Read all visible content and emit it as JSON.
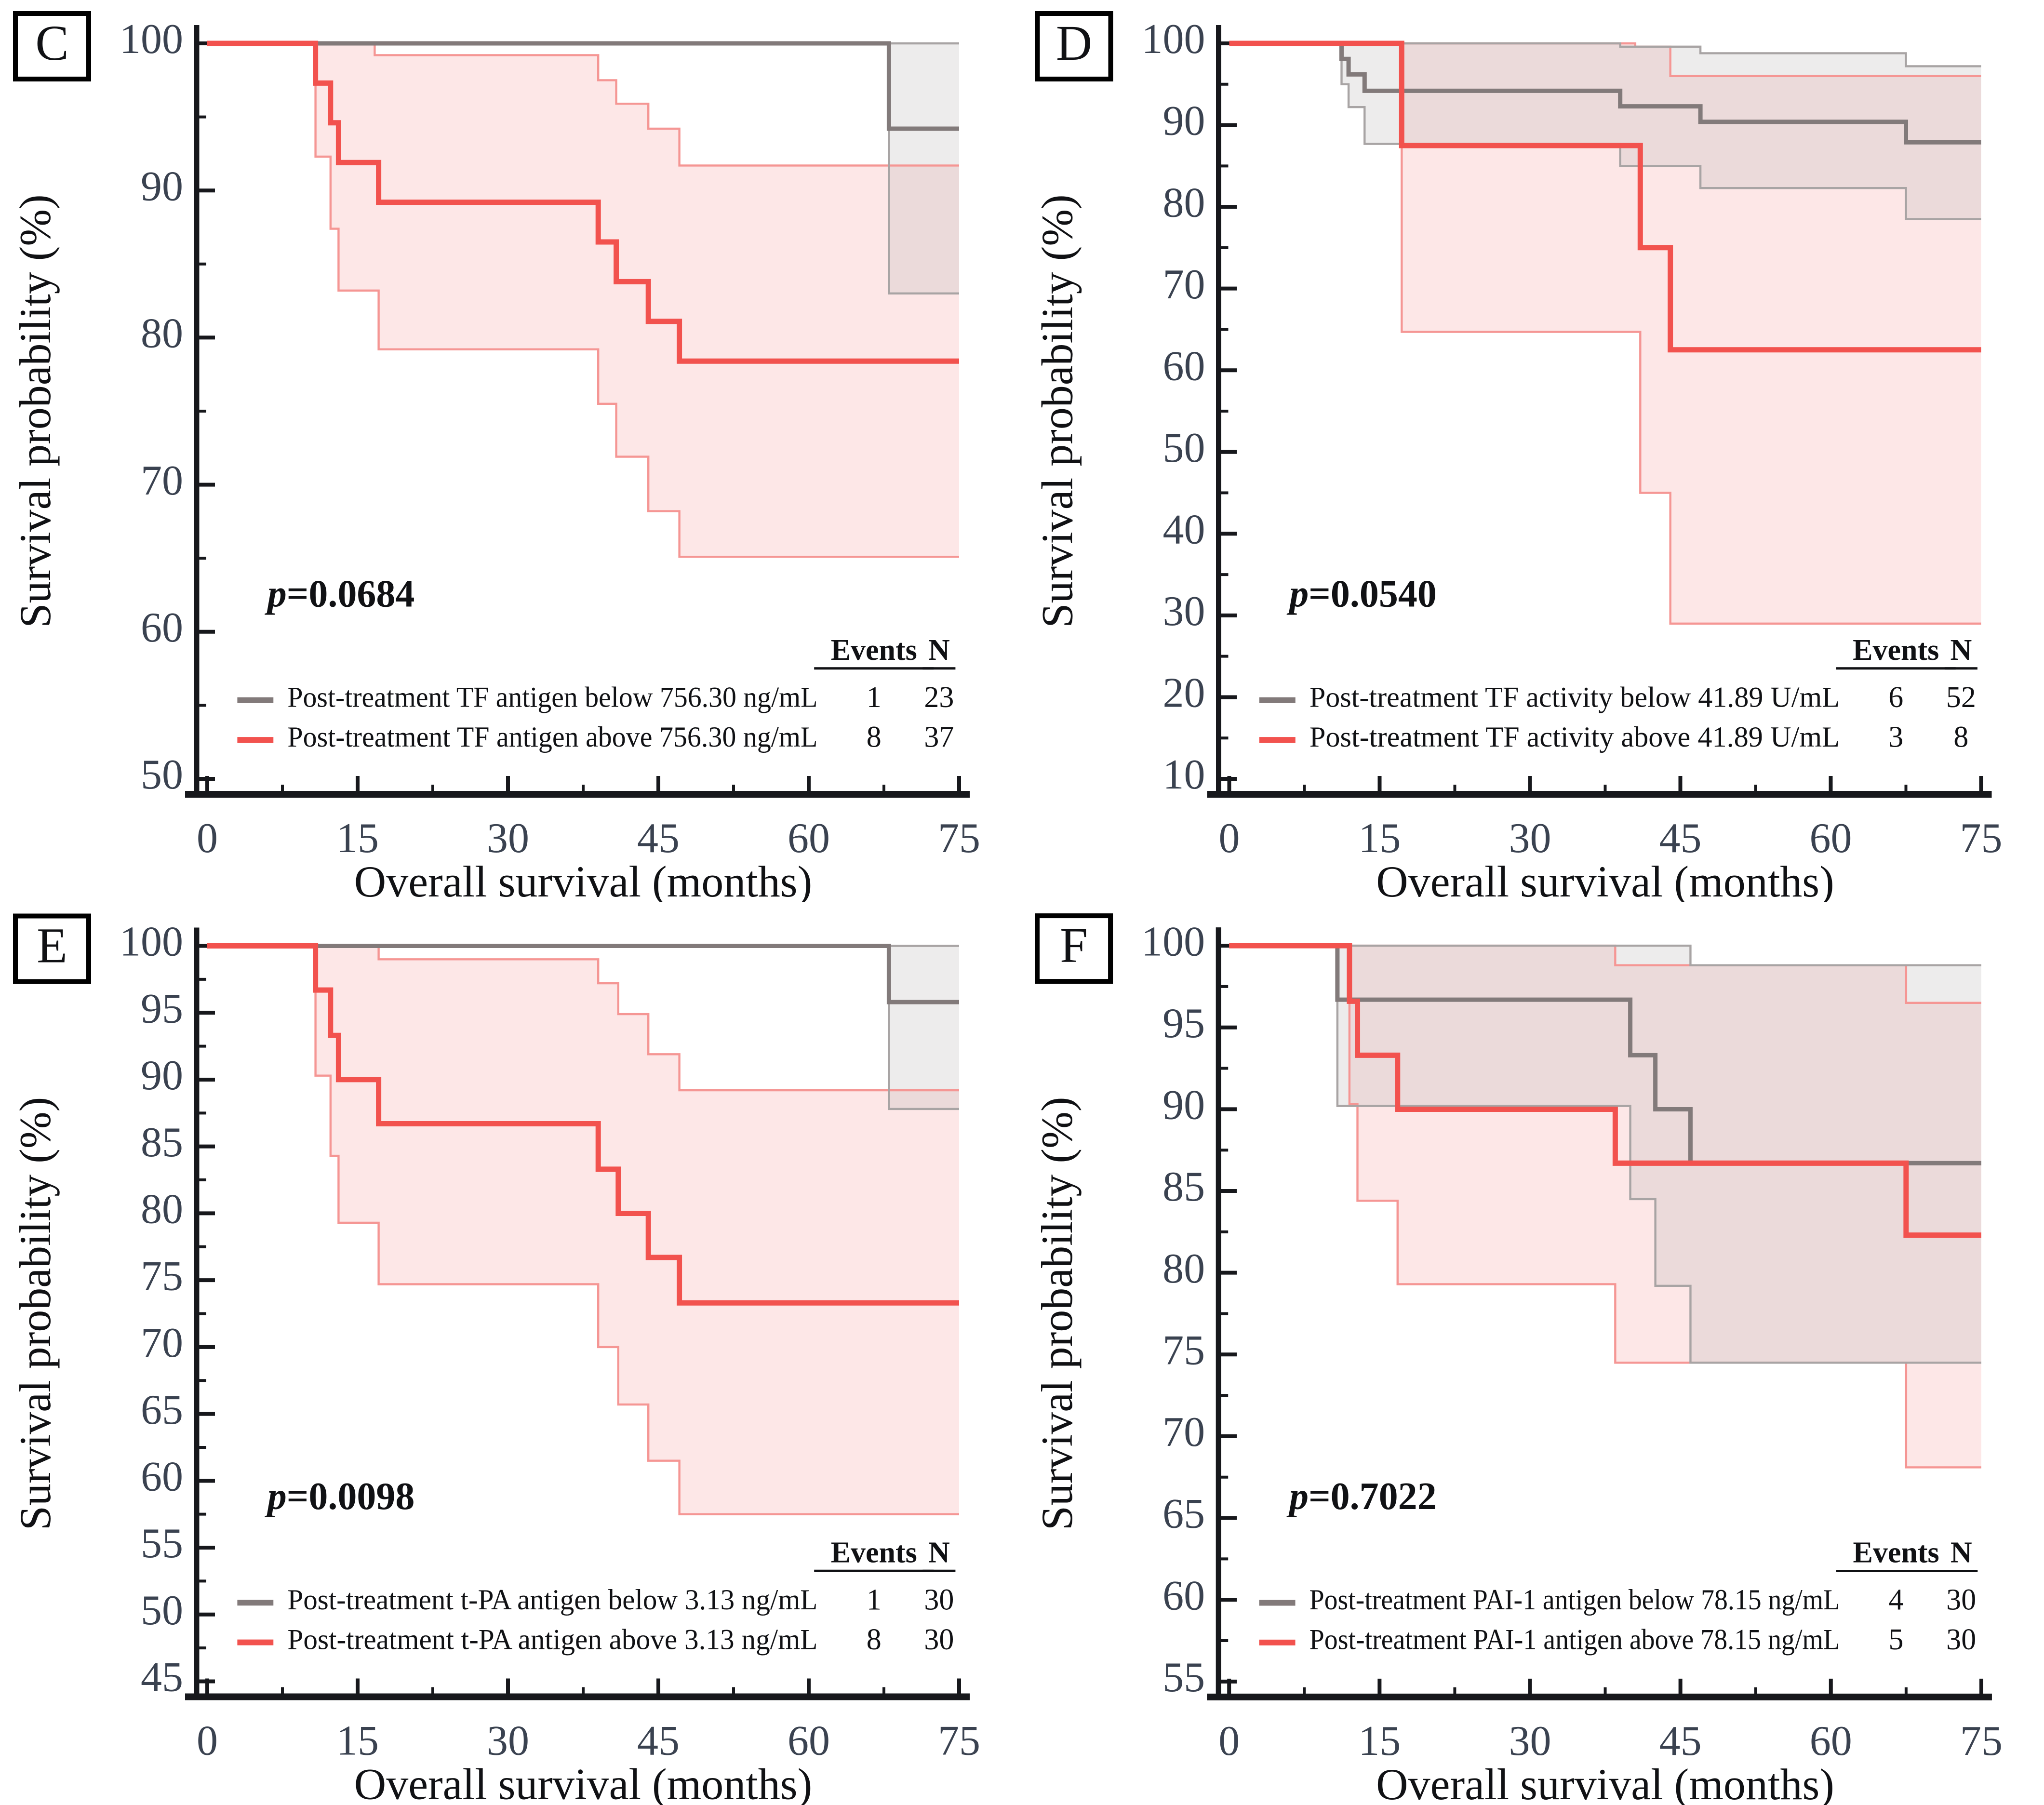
{
  "figure": {
    "background": "#ffffff",
    "colors": {
      "red_line": "#f2524e",
      "red_ci_edge": "#f59694",
      "red_ci_fill": "#f7b0ae",
      "red_ci_fill_opacity": 0.3,
      "gray_line": "#827a7a",
      "gray_ci_edge": "#a8a4a4",
      "gray_ci_fill": "#b8b4b4",
      "gray_ci_fill_opacity": 0.26,
      "axis": "#17181c",
      "tick_label": "#3a4250",
      "text": "#101114"
    }
  },
  "chart_data": [
    {
      "type": "line",
      "panel_label": "C",
      "p_value_italic": "p",
      "p_value_rest": "=0.0684",
      "xlabel": "Overall survival (months)",
      "ylabel": "Survival probability (%)",
      "xlim": [
        0,
        75
      ],
      "x_ticks": [
        0,
        15,
        30,
        45,
        60,
        75
      ],
      "x_minor_step": 7.5,
      "ylim": [
        50,
        100
      ],
      "y_ticks": [
        50,
        60,
        70,
        80,
        90,
        100
      ],
      "y_minor_step": 5,
      "legend_headers": {
        "events": "Events",
        "n": "N"
      },
      "series": [
        {
          "name": "Post-treatment TF antigen below 756.30 ng/mL",
          "color": "gray",
          "events": 1,
          "n": 23,
          "steps": [
            [
              0,
              100
            ],
            [
              68,
              100
            ],
            [
              68,
              94.2
            ],
            [
              75,
              94.2
            ]
          ],
          "ci_upper": [
            [
              68,
              100
            ],
            [
              75,
              100
            ]
          ],
          "ci_lower": [
            [
              68,
              100
            ],
            [
              68,
              83
            ],
            [
              75,
              83
            ]
          ]
        },
        {
          "name": "Post-treatment TF antigen above 756.30 ng/mL",
          "color": "red",
          "events": 8,
          "n": 37,
          "steps": [
            [
              0,
              100
            ],
            [
              10.8,
              100
            ],
            [
              10.8,
              97.3
            ],
            [
              12.3,
              97.3
            ],
            [
              12.3,
              94.6
            ],
            [
              13.1,
              94.6
            ],
            [
              13.1,
              91.9
            ],
            [
              17.1,
              91.9
            ],
            [
              17.1,
              89.2
            ],
            [
              39,
              89.2
            ],
            [
              39,
              86.5
            ],
            [
              40.8,
              86.5
            ],
            [
              40.8,
              83.8
            ],
            [
              44,
              83.8
            ],
            [
              44,
              81.1
            ],
            [
              47.1,
              81.1
            ],
            [
              47.1,
              78.4
            ],
            [
              75,
              78.4
            ]
          ],
          "ci_upper": [
            [
              0,
              100
            ],
            [
              16.7,
              100
            ],
            [
              16.7,
              99.2
            ],
            [
              39,
              99.2
            ],
            [
              39,
              97.5
            ],
            [
              40.8,
              97.5
            ],
            [
              40.8,
              95.9
            ],
            [
              44,
              95.9
            ],
            [
              44,
              94.2
            ],
            [
              47.1,
              94.2
            ],
            [
              47.1,
              91.7
            ],
            [
              75,
              91.7
            ]
          ],
          "ci_lower": [
            [
              10.8,
              100
            ],
            [
              10.8,
              92.3
            ],
            [
              12.3,
              92.3
            ],
            [
              12.3,
              87.4
            ],
            [
              13.1,
              87.4
            ],
            [
              13.1,
              83.2
            ],
            [
              17.1,
              83.2
            ],
            [
              17.1,
              79.2
            ],
            [
              39,
              79.2
            ],
            [
              39,
              75.5
            ],
            [
              40.8,
              75.5
            ],
            [
              40.8,
              71.9
            ],
            [
              44,
              71.9
            ],
            [
              44,
              68.2
            ],
            [
              47.1,
              68.2
            ],
            [
              47.1,
              65.1
            ],
            [
              75,
              65.1
            ]
          ]
        }
      ]
    },
    {
      "type": "line",
      "panel_label": "D",
      "p_value_italic": "p",
      "p_value_rest": "=0.0540",
      "xlabel": "Overall survival (months)",
      "ylabel": "Survival probability (%)",
      "xlim": [
        0,
        75
      ],
      "x_ticks": [
        0,
        15,
        30,
        45,
        60,
        75
      ],
      "x_minor_step": 7.5,
      "ylim": [
        10,
        100
      ],
      "y_ticks": [
        10,
        20,
        30,
        40,
        50,
        60,
        70,
        80,
        90,
        100
      ],
      "y_minor_step": 5,
      "legend_headers": {
        "events": "Events",
        "n": "N"
      },
      "series": [
        {
          "name": "Post-treatment TF activity below 41.89 U/mL",
          "color": "gray",
          "events": 6,
          "n": 52,
          "steps": [
            [
              0,
              100
            ],
            [
              11.2,
              100
            ],
            [
              11.2,
              98.1
            ],
            [
              11.9,
              98.1
            ],
            [
              11.9,
              96.2
            ],
            [
              13.5,
              96.2
            ],
            [
              13.5,
              94.2
            ],
            [
              39,
              94.2
            ],
            [
              39,
              92.3
            ],
            [
              47,
              92.3
            ],
            [
              47,
              90.4
            ],
            [
              67.5,
              90.4
            ],
            [
              67.5,
              87.9
            ],
            [
              75,
              87.9
            ]
          ],
          "ci_upper": [
            [
              0,
              100
            ],
            [
              39,
              100
            ],
            [
              39,
              99.6
            ],
            [
              47,
              99.6
            ],
            [
              47,
              98.8
            ],
            [
              67.5,
              98.8
            ],
            [
              67.5,
              97.2
            ],
            [
              75,
              97.2
            ]
          ],
          "ci_lower": [
            [
              11.2,
              100
            ],
            [
              11.2,
              95
            ],
            [
              11.9,
              95
            ],
            [
              11.9,
              92.2
            ],
            [
              13.5,
              92.2
            ],
            [
              13.5,
              87.7
            ],
            [
              39,
              87.7
            ],
            [
              39,
              85
            ],
            [
              47,
              85
            ],
            [
              47,
              82.3
            ],
            [
              67.5,
              82.3
            ],
            [
              67.5,
              78.5
            ],
            [
              75,
              78.5
            ]
          ]
        },
        {
          "name": "Post-treatment TF activity above 41.89 U/mL",
          "color": "red",
          "events": 3,
          "n": 8,
          "steps": [
            [
              0,
              100
            ],
            [
              17.2,
              100
            ],
            [
              17.2,
              87.5
            ],
            [
              41,
              87.5
            ],
            [
              41,
              75
            ],
            [
              44,
              75
            ],
            [
              44,
              62.5
            ],
            [
              75,
              62.5
            ]
          ],
          "ci_upper": [
            [
              0,
              100
            ],
            [
              40.5,
              100
            ],
            [
              40.5,
              99.6
            ],
            [
              44,
              99.6
            ],
            [
              44,
              96
            ],
            [
              75,
              96
            ]
          ],
          "ci_lower": [
            [
              17.2,
              100
            ],
            [
              17.2,
              64.7
            ],
            [
              41,
              64.7
            ],
            [
              41,
              45
            ],
            [
              44,
              45
            ],
            [
              44,
              29
            ],
            [
              75,
              29
            ]
          ]
        }
      ]
    },
    {
      "type": "line",
      "panel_label": "E",
      "p_value_italic": "p",
      "p_value_rest": "=0.0098",
      "xlabel": "Overall survival (months)",
      "ylabel": "Survival probability (%)",
      "xlim": [
        0,
        75
      ],
      "x_ticks": [
        0,
        15,
        30,
        45,
        60,
        75
      ],
      "x_minor_step": 7.5,
      "ylim": [
        45,
        100
      ],
      "y_ticks": [
        45,
        50,
        55,
        60,
        65,
        70,
        75,
        80,
        85,
        90,
        95,
        100
      ],
      "y_minor_step": 2.5,
      "legend_headers": {
        "events": "Events",
        "n": "N"
      },
      "series": [
        {
          "name": "Post-treatment t-PA antigen below 3.13 ng/mL",
          "color": "gray",
          "events": 1,
          "n": 30,
          "steps": [
            [
              0,
              100
            ],
            [
              68,
              100
            ],
            [
              68,
              95.8
            ],
            [
              75,
              95.8
            ]
          ],
          "ci_upper": [
            [
              68,
              100
            ],
            [
              75,
              100
            ]
          ],
          "ci_lower": [
            [
              68,
              100
            ],
            [
              68,
              87.8
            ],
            [
              75,
              87.8
            ]
          ]
        },
        {
          "name": "Post-treatment t-PA antigen above 3.13 ng/mL",
          "color": "red",
          "events": 8,
          "n": 30,
          "steps": [
            [
              0,
              100
            ],
            [
              10.8,
              100
            ],
            [
              10.8,
              96.7
            ],
            [
              12.3,
              96.7
            ],
            [
              12.3,
              93.3
            ],
            [
              13.1,
              93.3
            ],
            [
              13.1,
              90
            ],
            [
              17.1,
              90
            ],
            [
              17.1,
              86.7
            ],
            [
              39,
              86.7
            ],
            [
              39,
              83.3
            ],
            [
              41,
              83.3
            ],
            [
              41,
              80
            ],
            [
              44,
              80
            ],
            [
              44,
              76.7
            ],
            [
              47.1,
              76.7
            ],
            [
              47.1,
              73.3
            ],
            [
              75,
              73.3
            ]
          ],
          "ci_upper": [
            [
              0,
              100
            ],
            [
              17.1,
              100
            ],
            [
              17.1,
              99
            ],
            [
              39,
              99
            ],
            [
              39,
              97.2
            ],
            [
              41,
              97.2
            ],
            [
              41,
              94.9
            ],
            [
              44,
              94.9
            ],
            [
              44,
              91.9
            ],
            [
              47.1,
              91.9
            ],
            [
              47.1,
              89.2
            ],
            [
              75,
              89.2
            ]
          ],
          "ci_lower": [
            [
              10.8,
              100
            ],
            [
              10.8,
              90.3
            ],
            [
              12.3,
              90.3
            ],
            [
              12.3,
              84.3
            ],
            [
              13.1,
              84.3
            ],
            [
              13.1,
              79.3
            ],
            [
              17.1,
              79.3
            ],
            [
              17.1,
              74.7
            ],
            [
              39,
              74.7
            ],
            [
              39,
              70
            ],
            [
              41,
              70
            ],
            [
              41,
              65.7
            ],
            [
              44,
              65.7
            ],
            [
              44,
              61.5
            ],
            [
              47.1,
              61.5
            ],
            [
              47.1,
              57.5
            ],
            [
              75,
              57.5
            ]
          ]
        }
      ]
    },
    {
      "type": "line",
      "panel_label": "F",
      "p_value_italic": "p",
      "p_value_rest": "=0.7022",
      "xlabel": "Overall survival (months)",
      "ylabel": "Survival probability (%)",
      "xlim": [
        0,
        75
      ],
      "x_ticks": [
        0,
        15,
        30,
        45,
        60,
        75
      ],
      "x_minor_step": 7.5,
      "ylim": [
        55,
        100
      ],
      "y_ticks": [
        55,
        60,
        65,
        70,
        75,
        80,
        85,
        90,
        95,
        100
      ],
      "y_minor_step": 2.5,
      "legend_headers": {
        "events": "Events",
        "n": "N"
      },
      "series": [
        {
          "name": "Post-treatment PAI-1 antigen below 78.15 ng/mL",
          "color": "gray",
          "events": 4,
          "n": 30,
          "steps": [
            [
              0,
              100
            ],
            [
              10.8,
              100
            ],
            [
              10.8,
              96.7
            ],
            [
              40,
              96.7
            ],
            [
              40,
              93.3
            ],
            [
              42.5,
              93.3
            ],
            [
              42.5,
              90
            ],
            [
              46,
              90
            ],
            [
              46,
              86.7
            ],
            [
              75,
              86.7
            ]
          ],
          "ci_upper": [
            [
              0,
              100
            ],
            [
              46,
              100
            ],
            [
              46,
              98.8
            ],
            [
              75,
              98.8
            ]
          ],
          "ci_lower": [
            [
              10.8,
              100
            ],
            [
              10.8,
              90.2
            ],
            [
              40,
              90.2
            ],
            [
              40,
              84.5
            ],
            [
              42.5,
              84.5
            ],
            [
              42.5,
              79.2
            ],
            [
              46,
              79.2
            ],
            [
              46,
              74.5
            ],
            [
              75,
              74.5
            ]
          ]
        },
        {
          "name": "Post-treatment PAI-1 antigen above 78.15 ng/mL",
          "color": "red",
          "events": 5,
          "n": 30,
          "steps": [
            [
              0,
              100
            ],
            [
              12,
              100
            ],
            [
              12,
              96.6
            ],
            [
              12.8,
              96.6
            ],
            [
              12.8,
              93.3
            ],
            [
              16.8,
              93.3
            ],
            [
              16.8,
              90
            ],
            [
              38.5,
              90
            ],
            [
              38.5,
              86.7
            ],
            [
              67.5,
              86.7
            ],
            [
              67.5,
              82.3
            ],
            [
              75,
              82.3
            ]
          ],
          "ci_upper": [
            [
              0,
              100
            ],
            [
              38.5,
              100
            ],
            [
              38.5,
              98.8
            ],
            [
              67.5,
              98.8
            ],
            [
              67.5,
              96.5
            ],
            [
              75,
              96.5
            ]
          ],
          "ci_lower": [
            [
              12,
              100
            ],
            [
              12,
              90.3
            ],
            [
              12.8,
              90.3
            ],
            [
              12.8,
              84.4
            ],
            [
              16.8,
              84.4
            ],
            [
              16.8,
              79.3
            ],
            [
              38.5,
              79.3
            ],
            [
              38.5,
              74.5
            ],
            [
              67.5,
              74.5
            ],
            [
              67.5,
              68.1
            ],
            [
              75,
              68.1
            ]
          ]
        }
      ]
    }
  ]
}
